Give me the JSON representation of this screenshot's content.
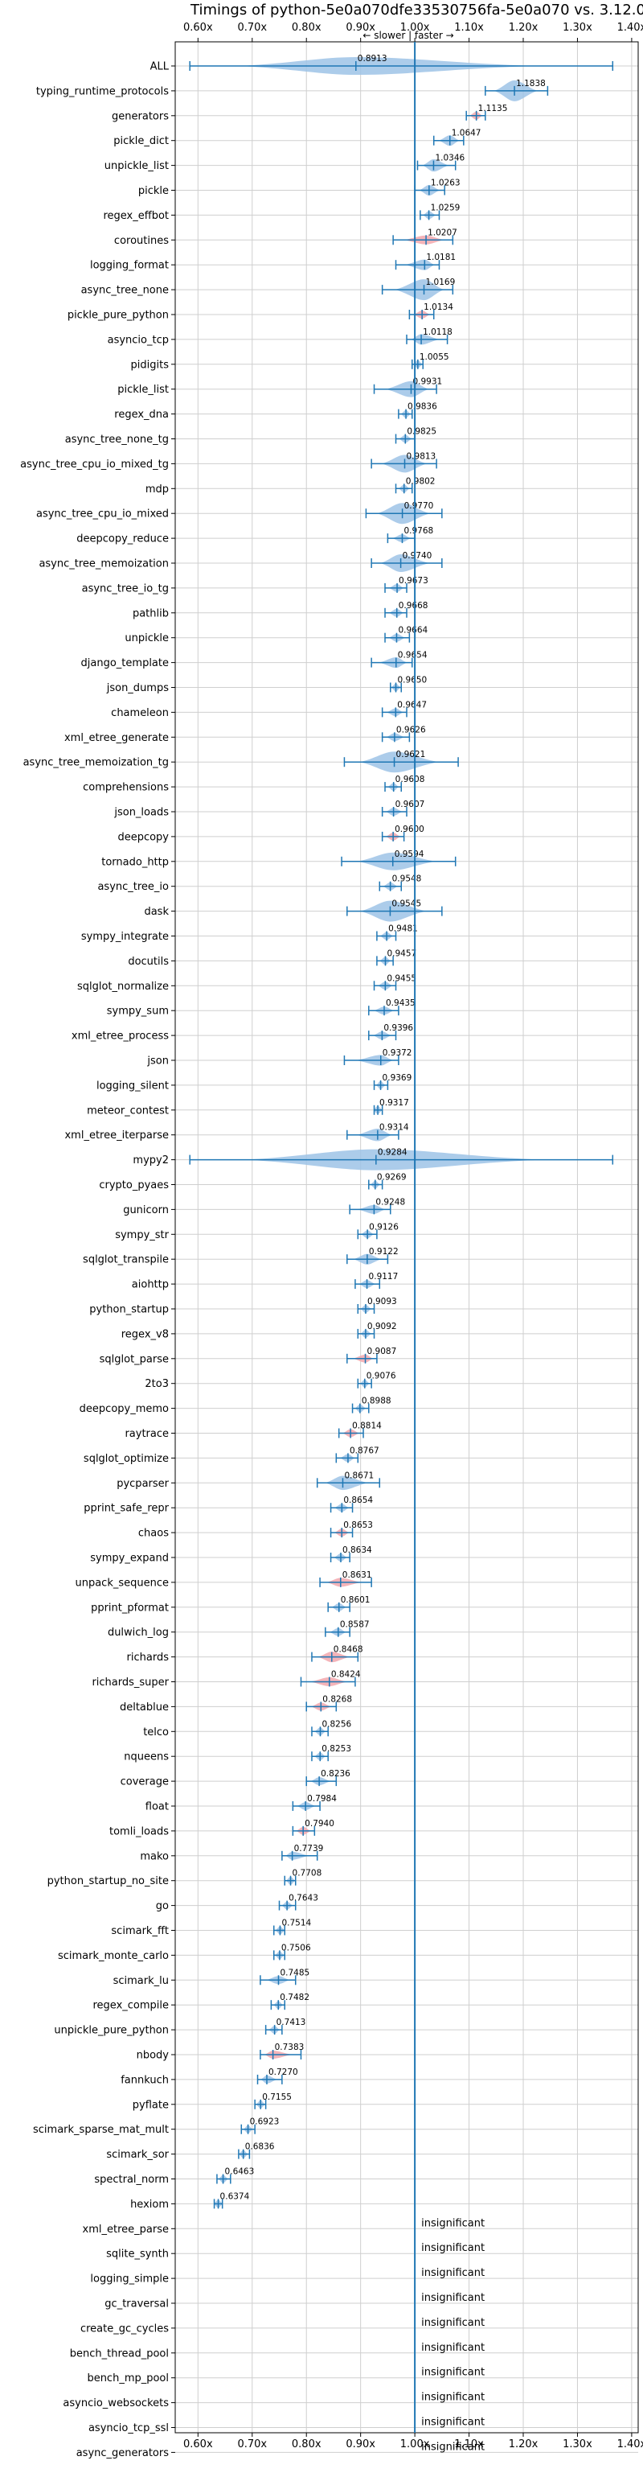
{
  "chart_data": {
    "type": "violin",
    "title": "Timings of python-5e0a070dfe33530756fa-5e0a070 vs. 3.12.0",
    "direction_label": "← slower | faster →",
    "xlim": [
      0.55,
      1.4
    ],
    "x_ticks": [
      "0.60x",
      "0.70x",
      "0.80x",
      "0.90x",
      "1.00x",
      "1.10x",
      "1.20x",
      "1.30x",
      "1.40x"
    ],
    "x_tick_values": [
      0.6,
      0.7,
      0.8,
      0.9,
      1.0,
      1.1,
      1.2,
      1.3,
      1.4
    ],
    "reference_line": 1.0,
    "grid": true,
    "colors": {
      "violin": "#9ec3e6",
      "violin_red": "#f2a7ad",
      "marker": "#1f77b4",
      "refline": "#1f77b4"
    },
    "insignificant_label": "insignificant",
    "benchmarks": [
      {
        "name": "ALL",
        "value": 0.8913,
        "min": 0.585,
        "max": 1.365,
        "spread": 0.05,
        "label": "0.8913"
      },
      {
        "name": "typing_runtime_protocols",
        "value": 1.1838,
        "min": 1.13,
        "max": 1.245,
        "spread": 0.06,
        "label": "1.1838"
      },
      {
        "name": "generators",
        "value": 1.1135,
        "min": 1.095,
        "max": 1.13,
        "spread": 0.02,
        "label": "1.1135",
        "highlight": true
      },
      {
        "name": "pickle_dict",
        "value": 1.0647,
        "min": 1.035,
        "max": 1.09,
        "spread": 0.03,
        "label": "1.0647"
      },
      {
        "name": "unpickle_list",
        "value": 1.0346,
        "min": 1.005,
        "max": 1.075,
        "spread": 0.035,
        "label": "1.0346"
      },
      {
        "name": "pickle",
        "value": 1.0263,
        "min": 1.0,
        "max": 1.055,
        "spread": 0.03,
        "label": "1.0263"
      },
      {
        "name": "regex_effbot",
        "value": 1.0259,
        "min": 1.01,
        "max": 1.045,
        "spread": 0.02,
        "label": "1.0259"
      },
      {
        "name": "coroutines",
        "value": 1.0207,
        "min": 0.96,
        "max": 1.07,
        "spread": 0.025,
        "label": "1.0207",
        "highlight": true
      },
      {
        "name": "logging_format",
        "value": 1.0181,
        "min": 0.965,
        "max": 1.045,
        "spread": 0.03,
        "label": "1.0181"
      },
      {
        "name": "async_tree_none",
        "value": 1.0169,
        "min": 0.94,
        "max": 1.07,
        "spread": 0.06,
        "label": "1.0169"
      },
      {
        "name": "pickle_pure_python",
        "value": 1.0134,
        "min": 0.99,
        "max": 1.035,
        "spread": 0.02,
        "label": "1.0134",
        "highlight": true
      },
      {
        "name": "asyncio_tcp",
        "value": 1.0118,
        "min": 0.985,
        "max": 1.06,
        "spread": 0.03,
        "label": "1.0118"
      },
      {
        "name": "pidigits",
        "value": 1.0055,
        "min": 0.995,
        "max": 1.015,
        "spread": 0.008,
        "label": "1.0055"
      },
      {
        "name": "pickle_list",
        "value": 0.9931,
        "min": 0.925,
        "max": 1.04,
        "spread": 0.045,
        "label": "0.9931"
      },
      {
        "name": "regex_dna",
        "value": 0.9836,
        "min": 0.97,
        "max": 0.995,
        "spread": 0.012,
        "label": "0.9836"
      },
      {
        "name": "async_tree_none_tg",
        "value": 0.9825,
        "min": 0.965,
        "max": 1.0,
        "spread": 0.015,
        "label": "0.9825"
      },
      {
        "name": "async_tree_cpu_io_mixed_tg",
        "value": 0.9813,
        "min": 0.92,
        "max": 1.04,
        "spread": 0.05,
        "label": "0.9813"
      },
      {
        "name": "mdp",
        "value": 0.9802,
        "min": 0.965,
        "max": 0.995,
        "spread": 0.012,
        "label": "0.9802"
      },
      {
        "name": "async_tree_cpu_io_mixed",
        "value": 0.977,
        "min": 0.91,
        "max": 1.05,
        "spread": 0.06,
        "label": "0.9770"
      },
      {
        "name": "deepcopy_reduce",
        "value": 0.9768,
        "min": 0.95,
        "max": 1.0,
        "spread": 0.02,
        "label": "0.9768"
      },
      {
        "name": "async_tree_memoization",
        "value": 0.974,
        "min": 0.92,
        "max": 1.05,
        "spread": 0.05,
        "label": "0.9740"
      },
      {
        "name": "async_tree_io_tg",
        "value": 0.9673,
        "min": 0.945,
        "max": 0.985,
        "spread": 0.015,
        "label": "0.9673"
      },
      {
        "name": "pathlib",
        "value": 0.9668,
        "min": 0.945,
        "max": 0.985,
        "spread": 0.015,
        "label": "0.9668"
      },
      {
        "name": "unpickle",
        "value": 0.9664,
        "min": 0.945,
        "max": 0.99,
        "spread": 0.02,
        "label": "0.9664"
      },
      {
        "name": "django_template",
        "value": 0.9654,
        "min": 0.92,
        "max": 0.995,
        "spread": 0.03,
        "label": "0.9654"
      },
      {
        "name": "json_dumps",
        "value": 0.965,
        "min": 0.955,
        "max": 0.975,
        "spread": 0.01,
        "label": "0.9650"
      },
      {
        "name": "chameleon",
        "value": 0.9647,
        "min": 0.94,
        "max": 0.985,
        "spread": 0.015,
        "label": "0.9647"
      },
      {
        "name": "xml_etree_generate",
        "value": 0.9626,
        "min": 0.94,
        "max": 0.99,
        "spread": 0.02,
        "label": "0.9626"
      },
      {
        "name": "async_tree_memoization_tg",
        "value": 0.9621,
        "min": 0.87,
        "max": 1.08,
        "spread": 0.08,
        "label": "0.9621"
      },
      {
        "name": "comprehensions",
        "value": 0.9608,
        "min": 0.945,
        "max": 0.975,
        "spread": 0.012,
        "label": "0.9608"
      },
      {
        "name": "json_loads",
        "value": 0.9607,
        "min": 0.94,
        "max": 0.985,
        "spread": 0.015,
        "label": "0.9607"
      },
      {
        "name": "deepcopy",
        "value": 0.96,
        "min": 0.94,
        "max": 0.98,
        "spread": 0.015,
        "label": "0.9600",
        "highlight": true
      },
      {
        "name": "tornado_http",
        "value": 0.9594,
        "min": 0.865,
        "max": 1.075,
        "spread": 0.05,
        "label": "0.9594"
      },
      {
        "name": "async_tree_io",
        "value": 0.9548,
        "min": 0.935,
        "max": 0.975,
        "spread": 0.015,
        "label": "0.9548"
      },
      {
        "name": "dask",
        "value": 0.9545,
        "min": 0.875,
        "max": 1.05,
        "spread": 0.06,
        "label": "0.9545"
      },
      {
        "name": "sympy_integrate",
        "value": 0.9481,
        "min": 0.93,
        "max": 0.965,
        "spread": 0.015,
        "label": "0.9481"
      },
      {
        "name": "docutils",
        "value": 0.9457,
        "min": 0.93,
        "max": 0.96,
        "spread": 0.012,
        "label": "0.9457"
      },
      {
        "name": "sqlglot_normalize",
        "value": 0.9455,
        "min": 0.925,
        "max": 0.965,
        "spread": 0.015,
        "label": "0.9455"
      },
      {
        "name": "sympy_sum",
        "value": 0.9435,
        "min": 0.915,
        "max": 0.97,
        "spread": 0.02,
        "label": "0.9435"
      },
      {
        "name": "xml_etree_process",
        "value": 0.9396,
        "min": 0.915,
        "max": 0.965,
        "spread": 0.02,
        "label": "0.9396"
      },
      {
        "name": "json",
        "value": 0.9372,
        "min": 0.87,
        "max": 0.97,
        "spread": 0.03,
        "label": "0.9372"
      },
      {
        "name": "logging_silent",
        "value": 0.9369,
        "min": 0.925,
        "max": 0.95,
        "spread": 0.01,
        "label": "0.9369"
      },
      {
        "name": "meteor_contest",
        "value": 0.9317,
        "min": 0.925,
        "max": 0.94,
        "spread": 0.006,
        "label": "0.9317"
      },
      {
        "name": "xml_etree_iterparse",
        "value": 0.9314,
        "min": 0.875,
        "max": 0.97,
        "spread": 0.035,
        "label": "0.9314"
      },
      {
        "name": "mypy2",
        "value": 0.9284,
        "min": 0.585,
        "max": 1.365,
        "spread": 0.1,
        "label": "0.9284"
      },
      {
        "name": "crypto_pyaes",
        "value": 0.9269,
        "min": 0.915,
        "max": 0.94,
        "spread": 0.01,
        "label": "0.9269"
      },
      {
        "name": "gunicorn",
        "value": 0.9248,
        "min": 0.88,
        "max": 0.955,
        "spread": 0.025,
        "label": "0.9248"
      },
      {
        "name": "sympy_str",
        "value": 0.9126,
        "min": 0.895,
        "max": 0.93,
        "spread": 0.012,
        "label": "0.9126"
      },
      {
        "name": "sqlglot_transpile",
        "value": 0.9122,
        "min": 0.875,
        "max": 0.95,
        "spread": 0.03,
        "label": "0.9122"
      },
      {
        "name": "aiohttp",
        "value": 0.9117,
        "min": 0.89,
        "max": 0.935,
        "spread": 0.015,
        "label": "0.9117"
      },
      {
        "name": "python_startup",
        "value": 0.9093,
        "min": 0.895,
        "max": 0.925,
        "spread": 0.01,
        "label": "0.9093"
      },
      {
        "name": "regex_v8",
        "value": 0.9092,
        "min": 0.895,
        "max": 0.925,
        "spread": 0.01,
        "label": "0.9092"
      },
      {
        "name": "sqlglot_parse",
        "value": 0.9087,
        "min": 0.875,
        "max": 0.93,
        "spread": 0.02,
        "label": "0.9087",
        "highlight": true
      },
      {
        "name": "2to3",
        "value": 0.9076,
        "min": 0.895,
        "max": 0.92,
        "spread": 0.01,
        "label": "0.9076"
      },
      {
        "name": "deepcopy_memo",
        "value": 0.8988,
        "min": 0.885,
        "max": 0.915,
        "spread": 0.012,
        "label": "0.8988"
      },
      {
        "name": "raytrace",
        "value": 0.8814,
        "min": 0.86,
        "max": 0.905,
        "spread": 0.015,
        "label": "0.8814",
        "highlight": true
      },
      {
        "name": "sqlglot_optimize",
        "value": 0.8767,
        "min": 0.855,
        "max": 0.895,
        "spread": 0.015,
        "label": "0.8767"
      },
      {
        "name": "pycparser",
        "value": 0.8671,
        "min": 0.82,
        "max": 0.935,
        "spread": 0.04,
        "label": "0.8671"
      },
      {
        "name": "pprint_safe_repr",
        "value": 0.8654,
        "min": 0.845,
        "max": 0.885,
        "spread": 0.015,
        "label": "0.8654"
      },
      {
        "name": "chaos",
        "value": 0.8653,
        "min": 0.845,
        "max": 0.885,
        "spread": 0.015,
        "label": "0.8653",
        "highlight": true
      },
      {
        "name": "sympy_expand",
        "value": 0.8634,
        "min": 0.845,
        "max": 0.88,
        "spread": 0.012,
        "label": "0.8634"
      },
      {
        "name": "unpack_sequence",
        "value": 0.8631,
        "min": 0.825,
        "max": 0.92,
        "spread": 0.025,
        "label": "0.8631",
        "highlight": true
      },
      {
        "name": "pprint_pformat",
        "value": 0.8601,
        "min": 0.84,
        "max": 0.88,
        "spread": 0.015,
        "label": "0.8601"
      },
      {
        "name": "dulwich_log",
        "value": 0.8587,
        "min": 0.835,
        "max": 0.88,
        "spread": 0.015,
        "label": "0.8587"
      },
      {
        "name": "richards",
        "value": 0.8468,
        "min": 0.81,
        "max": 0.895,
        "spread": 0.03,
        "label": "0.8468",
        "highlight": true
      },
      {
        "name": "richards_super",
        "value": 0.8424,
        "min": 0.79,
        "max": 0.89,
        "spread": 0.025,
        "label": "0.8424",
        "highlight": true
      },
      {
        "name": "deltablue",
        "value": 0.8268,
        "min": 0.8,
        "max": 0.855,
        "spread": 0.02,
        "label": "0.8268",
        "highlight": true
      },
      {
        "name": "telco",
        "value": 0.8256,
        "min": 0.81,
        "max": 0.84,
        "spread": 0.01,
        "label": "0.8256"
      },
      {
        "name": "nqueens",
        "value": 0.8253,
        "min": 0.81,
        "max": 0.84,
        "spread": 0.01,
        "label": "0.8253"
      },
      {
        "name": "coverage",
        "value": 0.8236,
        "min": 0.8,
        "max": 0.855,
        "spread": 0.02,
        "label": "0.8236"
      },
      {
        "name": "float",
        "value": 0.7984,
        "min": 0.775,
        "max": 0.825,
        "spread": 0.015,
        "label": "0.7984"
      },
      {
        "name": "tomli_loads",
        "value": 0.794,
        "min": 0.775,
        "max": 0.815,
        "spread": 0.015,
        "label": "0.7940",
        "highlight": true
      },
      {
        "name": "mako",
        "value": 0.7739,
        "min": 0.755,
        "max": 0.82,
        "spread": 0.015,
        "label": "0.7739"
      },
      {
        "name": "python_startup_no_site",
        "value": 0.7708,
        "min": 0.76,
        "max": 0.78,
        "spread": 0.008,
        "label": "0.7708"
      },
      {
        "name": "go",
        "value": 0.7643,
        "min": 0.75,
        "max": 0.78,
        "spread": 0.012,
        "label": "0.7643"
      },
      {
        "name": "scimark_fft",
        "value": 0.7514,
        "min": 0.74,
        "max": 0.76,
        "spread": 0.008,
        "label": "0.7514"
      },
      {
        "name": "scimark_monte_carlo",
        "value": 0.7506,
        "min": 0.74,
        "max": 0.76,
        "spread": 0.008,
        "label": "0.7506"
      },
      {
        "name": "scimark_lu",
        "value": 0.7485,
        "min": 0.715,
        "max": 0.78,
        "spread": 0.02,
        "label": "0.7485"
      },
      {
        "name": "regex_compile",
        "value": 0.7482,
        "min": 0.735,
        "max": 0.76,
        "spread": 0.01,
        "label": "0.7482"
      },
      {
        "name": "unpickle_pure_python",
        "value": 0.7413,
        "min": 0.725,
        "max": 0.755,
        "spread": 0.01,
        "label": "0.7413"
      },
      {
        "name": "nbody",
        "value": 0.7383,
        "min": 0.715,
        "max": 0.79,
        "spread": 0.015,
        "label": "0.7383",
        "highlight": true
      },
      {
        "name": "fannkuch",
        "value": 0.727,
        "min": 0.71,
        "max": 0.755,
        "spread": 0.015,
        "label": "0.7270"
      },
      {
        "name": "pyflate",
        "value": 0.7155,
        "min": 0.705,
        "max": 0.725,
        "spread": 0.008,
        "label": "0.7155"
      },
      {
        "name": "scimark_sparse_mat_mult",
        "value": 0.6923,
        "min": 0.68,
        "max": 0.705,
        "spread": 0.01,
        "label": "0.6923"
      },
      {
        "name": "scimark_sor",
        "value": 0.6836,
        "min": 0.675,
        "max": 0.695,
        "spread": 0.008,
        "label": "0.6836"
      },
      {
        "name": "spectral_norm",
        "value": 0.6463,
        "min": 0.635,
        "max": 0.66,
        "spread": 0.01,
        "label": "0.6463"
      },
      {
        "name": "hexiom",
        "value": 0.6374,
        "min": 0.63,
        "max": 0.645,
        "spread": 0.006,
        "label": "0.6374"
      },
      {
        "name": "xml_etree_parse",
        "insignificant": true
      },
      {
        "name": "sqlite_synth",
        "insignificant": true
      },
      {
        "name": "logging_simple",
        "insignificant": true
      },
      {
        "name": "gc_traversal",
        "insignificant": true
      },
      {
        "name": "create_gc_cycles",
        "insignificant": true
      },
      {
        "name": "bench_thread_pool",
        "insignificant": true
      },
      {
        "name": "bench_mp_pool",
        "insignificant": true
      },
      {
        "name": "asyncio_websockets",
        "insignificant": true
      },
      {
        "name": "asyncio_tcp_ssl",
        "insignificant": true
      },
      {
        "name": "async_generators",
        "insignificant": true
      }
    ]
  }
}
